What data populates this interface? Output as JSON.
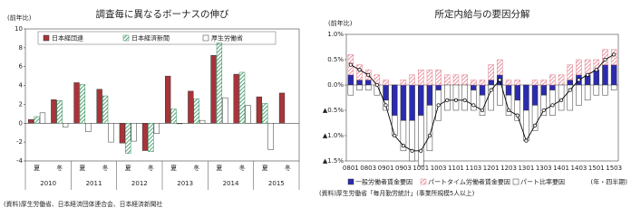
{
  "charts": [
    {
      "chart_data": {
        "type": "bar",
        "title": "調査毎に異なるボーナスの伸び",
        "y_label": "(前年比)",
        "categories": [
          "夏",
          "冬",
          "夏",
          "冬",
          "夏",
          "冬",
          "夏",
          "冬",
          "夏",
          "冬",
          "夏",
          "冬"
        ],
        "years": [
          "2010",
          "2011",
          "2012",
          "2013",
          "2014",
          "2015"
        ],
        "series": [
          {
            "name": "日本経団連",
            "color": "#a8343a",
            "hatch": false,
            "values": [
              0.4,
              2.5,
              4.3,
              3.6,
              -2.1,
              -2.9,
              5.0,
              3.4,
              7.2,
              5.2,
              2.8,
              3.2
            ]
          },
          {
            "name": "日本経済新聞",
            "color": "#2e8b57",
            "hatch": true,
            "values": [
              0.7,
              2.4,
              4.1,
              2.9,
              -3.2,
              -3.0,
              1.5,
              2.6,
              8.5,
              5.4,
              2.1,
              null
            ]
          },
          {
            "name": "厚生労働省",
            "color": "#ffffff",
            "hatch": false,
            "values": [
              1.1,
              -0.4,
              -0.9,
              -2.0,
              -1.9,
              -1.1,
              0.0,
              0.3,
              2.7,
              1.9,
              -2.8,
              null
            ]
          }
        ],
        "ylim": [
          -4,
          10
        ],
        "yticks": [
          -4,
          -2,
          0,
          2,
          4,
          6,
          8,
          10
        ],
        "grid": false,
        "source": "(資料)厚生労働省、日本経済団体連合会、日本経済新聞社"
      }
    },
    {
      "chart_data": {
        "type": "stacked_bar_line",
        "title": "所定内給与の要因分解",
        "y_label": "(前年比)",
        "x_label": "(年・四半期)",
        "categories": [
          "0801",
          null,
          "0803",
          null,
          "0901",
          null,
          "0903",
          null,
          "1001",
          null,
          "1003",
          null,
          "1101",
          null,
          "1103",
          null,
          "1201",
          null,
          "1203",
          null,
          "1301",
          null,
          "1303",
          null,
          "1401",
          null,
          "1403",
          null,
          "1501",
          null,
          "1503"
        ],
        "series": [
          {
            "name": "一般労働者賃金要因",
            "color": "#2b2bb0",
            "hatch": false,
            "values": [
              0.2,
              0.1,
              0.1,
              0.0,
              -0.3,
              -0.6,
              -0.7,
              -0.7,
              -0.6,
              -0.4,
              -0.1,
              0.0,
              0.0,
              0.0,
              -0.1,
              -0.2,
              0.1,
              0.2,
              -0.2,
              -0.3,
              -0.5,
              -0.4,
              -0.2,
              -0.1,
              0.0,
              0.1,
              0.2,
              0.2,
              0.3,
              0.4,
              0.4
            ]
          },
          {
            "name": "パートタイム労働者賃金要因",
            "color": "#e07a88",
            "hatch": true,
            "values": [
              0.4,
              0.3,
              0.2,
              0.2,
              0.1,
              0.0,
              0.1,
              0.2,
              0.3,
              0.3,
              0.3,
              0.2,
              0.2,
              0.2,
              0.1,
              0.1,
              0.3,
              0.3,
              0.1,
              0.1,
              0.0,
              0.1,
              0.1,
              0.2,
              0.2,
              0.3,
              0.3,
              0.3,
              0.2,
              0.3,
              0.3
            ]
          },
          {
            "name": "パート比率要因",
            "color": "#ffffff",
            "hatch": false,
            "values": [
              -0.2,
              -0.1,
              -0.1,
              -0.2,
              -0.2,
              -0.4,
              -0.6,
              -0.8,
              -1.0,
              -0.9,
              -0.6,
              -0.5,
              -0.5,
              -0.5,
              -0.4,
              -0.4,
              -0.5,
              -0.4,
              -0.4,
              -0.4,
              -0.6,
              -0.5,
              -0.4,
              -0.5,
              -0.5,
              -0.5,
              -0.4,
              -0.3,
              -0.2,
              -0.2,
              -0.1
            ]
          }
        ],
        "line_values": [
          0.4,
          0.3,
          0.2,
          0.0,
          -0.4,
          -1.0,
          -1.2,
          -1.3,
          -1.3,
          -1.0,
          -0.4,
          -0.3,
          -0.3,
          -0.3,
          -0.4,
          -0.5,
          -0.1,
          0.1,
          -0.5,
          -0.6,
          -1.1,
          -0.8,
          -0.5,
          -0.4,
          -0.3,
          -0.1,
          0.1,
          0.2,
          0.3,
          0.5,
          0.6
        ],
        "line_color": "#000000",
        "ylim": [
          -1.5,
          1.0
        ],
        "yticks": [
          {
            "value": 1.0,
            "label": "1.0%"
          },
          {
            "value": 0.5,
            "label": "0.5%"
          },
          {
            "value": 0.0,
            "label": "0.0%"
          },
          {
            "value": -0.5,
            "label": "▲0.5%"
          },
          {
            "value": -1.0,
            "label": "▲1.0%"
          },
          {
            "value": -1.5,
            "label": "▲1.5%"
          }
        ],
        "grid": false,
        "source": "(資料)厚生労働省「毎月勤労統計」(事業所規模5人以上)"
      }
    }
  ]
}
